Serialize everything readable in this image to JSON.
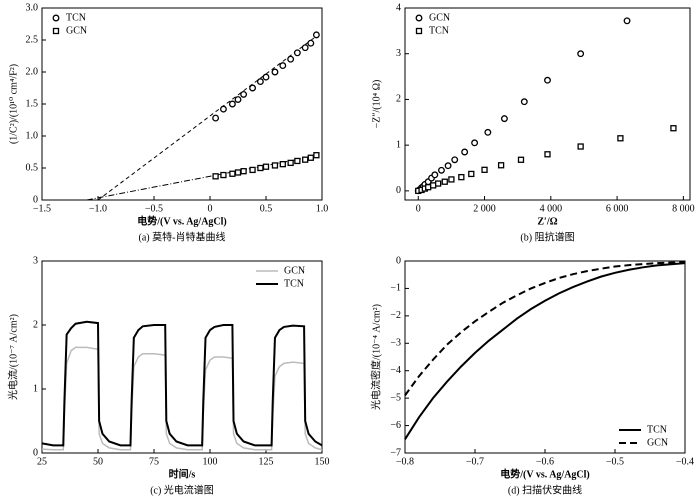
{
  "chart_data": [
    {
      "type": "scatter",
      "caption": "(a) 莫特-肖特基曲线",
      "x_label": "电势/(V vs. Ag/AgCl)",
      "y_label": "(1/C²)/(10¹⁰ cm⁴/F²)",
      "xlim": [
        -1.5,
        1.0
      ],
      "xticks": [
        {
          "value": -1.5,
          "label": "−1.5"
        },
        {
          "value": -1.0,
          "label": "−1.0"
        },
        {
          "value": -0.5,
          "label": "−0.5"
        },
        0,
        0.5,
        {
          "value": 1.0,
          "label": "1.0"
        }
      ],
      "ylim": [
        0,
        3.0
      ],
      "yticks": [
        0,
        0.5,
        {
          "value": 1.0,
          "label": "1.0"
        },
        1.5,
        {
          "value": 2.0,
          "label": "2.0"
        },
        2.5,
        {
          "value": 3.0,
          "label": "3.0"
        }
      ],
      "legend": "upper left",
      "series": [
        {
          "name": "TCN",
          "marker": "circle",
          "color": "#000000",
          "x": [
            0.05,
            0.12,
            0.2,
            0.25,
            0.3,
            0.38,
            0.45,
            0.5,
            0.58,
            0.65,
            0.72,
            0.78,
            0.85,
            0.9,
            0.95
          ],
          "values": [
            1.28,
            1.42,
            1.5,
            1.57,
            1.65,
            1.75,
            1.85,
            1.92,
            2.0,
            2.1,
            2.2,
            2.3,
            2.38,
            2.45,
            2.58
          ]
        },
        {
          "name": "GCN",
          "marker": "square",
          "color": "#000000",
          "x": [
            0.05,
            0.12,
            0.2,
            0.25,
            0.3,
            0.38,
            0.45,
            0.5,
            0.58,
            0.65,
            0.72,
            0.78,
            0.85,
            0.9,
            0.95
          ],
          "values": [
            0.37,
            0.39,
            0.41,
            0.43,
            0.45,
            0.47,
            0.5,
            0.52,
            0.54,
            0.56,
            0.58,
            0.61,
            0.63,
            0.66,
            0.7
          ]
        }
      ],
      "fit_lines": [
        {
          "x": [
            -1.0,
            0.95
          ],
          "values": [
            0,
            2.56
          ],
          "dash": "4,3"
        },
        {
          "x": [
            -1.1,
            0.95
          ],
          "values": [
            0,
            0.69
          ],
          "dash": "6,2,1,2"
        }
      ]
    },
    {
      "type": "scatter",
      "caption": "(b) 阻抗谱图",
      "x_label": "Z′/Ω",
      "y_label": "−Z″/(10⁴ Ω)",
      "xlim": [
        -400,
        8200
      ],
      "xticks": [
        0,
        {
          "value": 2000,
          "label": "2 000"
        },
        {
          "value": 4000,
          "label": "4 000"
        },
        {
          "value": 6000,
          "label": "6 000"
        },
        {
          "value": 8000,
          "label": "8 000"
        }
      ],
      "ylim": [
        -0.2,
        4
      ],
      "yticks": [
        0,
        1,
        2,
        3,
        4
      ],
      "legend": "upper left",
      "series": [
        {
          "name": "GCN",
          "marker": "circle",
          "color": "#000000",
          "x": [
            0,
            50,
            100,
            150,
            200,
            300,
            400,
            500,
            700,
            900,
            1100,
            1400,
            1700,
            2100,
            2600,
            3200,
            3900,
            4900,
            6300
          ],
          "values": [
            0,
            0.03,
            0.07,
            0.1,
            0.14,
            0.2,
            0.28,
            0.35,
            0.45,
            0.55,
            0.68,
            0.85,
            1.05,
            1.28,
            1.58,
            1.95,
            2.42,
            3.0,
            3.72
          ]
        },
        {
          "name": "TCN",
          "marker": "square",
          "color": "#000000",
          "x": [
            0,
            100,
            200,
            300,
            450,
            600,
            800,
            1000,
            1300,
            1600,
            2000,
            2500,
            3100,
            3900,
            4900,
            6100,
            7700
          ],
          "values": [
            0,
            0.02,
            0.05,
            0.08,
            0.12,
            0.16,
            0.2,
            0.25,
            0.3,
            0.37,
            0.46,
            0.56,
            0.68,
            0.8,
            0.97,
            1.15,
            1.37
          ]
        }
      ]
    },
    {
      "type": "line",
      "caption": "(c) 光电流谱图",
      "x_label": "时间/s",
      "y_label": "光电流/(10⁻⁷ A/cm²)",
      "xlim": [
        25,
        150
      ],
      "xticks": [
        25,
        50,
        75,
        100,
        125,
        150
      ],
      "ylim": [
        0,
        3
      ],
      "yticks": [
        0,
        1,
        2,
        3
      ],
      "legend": "upper right",
      "x": [
        25,
        30,
        34.5,
        35,
        36,
        38,
        40,
        45,
        50,
        50.5,
        52,
        55,
        60,
        64.5,
        65,
        66,
        68,
        70,
        75,
        80,
        80.5,
        82,
        85,
        90,
        96.5,
        97,
        98,
        100,
        102,
        106,
        110,
        110.5,
        112,
        115,
        120,
        127.5,
        128,
        129,
        131,
        133,
        137,
        142,
        142.5,
        144,
        147,
        150
      ],
      "series": [
        {
          "name": "GCN",
          "color": "#bbbbbb",
          "width": 1.5,
          "values": [
            0.06,
            0.05,
            0.05,
            0.6,
            1.4,
            1.6,
            1.65,
            1.65,
            1.62,
            0.3,
            0.15,
            0.08,
            0.05,
            0.05,
            0.6,
            1.35,
            1.5,
            1.55,
            1.55,
            1.53,
            0.3,
            0.15,
            0.08,
            0.05,
            0.05,
            0.6,
            1.3,
            1.45,
            1.5,
            1.5,
            1.48,
            0.3,
            0.15,
            0.08,
            0.05,
            0.05,
            0.55,
            1.2,
            1.35,
            1.4,
            1.42,
            1.4,
            0.3,
            0.15,
            0.08,
            0.05
          ]
        },
        {
          "name": "TCN",
          "color": "#000000",
          "width": 2,
          "values": [
            0.15,
            0.12,
            0.12,
            0.8,
            1.85,
            1.95,
            2.02,
            2.05,
            2.03,
            0.5,
            0.3,
            0.18,
            0.12,
            0.12,
            0.8,
            1.8,
            1.92,
            1.98,
            2.0,
            2.0,
            0.5,
            0.3,
            0.18,
            0.12,
            0.12,
            0.8,
            1.8,
            1.92,
            1.97,
            2.0,
            2.0,
            0.5,
            0.3,
            0.18,
            0.12,
            0.12,
            0.8,
            1.8,
            1.92,
            1.97,
            1.99,
            1.98,
            0.5,
            0.3,
            0.18,
            0.12
          ]
        }
      ]
    },
    {
      "type": "line",
      "caption": "(d) 扫描伏安曲线",
      "x_label": "电势/(V vs. Ag/AgCl)",
      "y_label": "光电流密度/(10⁻⁴ A/cm²)",
      "xlim": [
        -0.8,
        -0.4
      ],
      "xticks": [
        {
          "value": -0.8,
          "label": "−0.8"
        },
        {
          "value": -0.7,
          "label": "−0.7"
        },
        {
          "value": -0.6,
          "label": "−0.6"
        },
        {
          "value": -0.5,
          "label": "−0.5"
        },
        {
          "value": -0.4,
          "label": "−0.4"
        }
      ],
      "ylim": [
        -7,
        0
      ],
      "yticks": [
        {
          "value": -7,
          "label": "−7"
        },
        {
          "value": -6,
          "label": "−6"
        },
        {
          "value": -5,
          "label": "−5"
        },
        {
          "value": -4,
          "label": "−4"
        },
        {
          "value": -3,
          "label": "−3"
        },
        {
          "value": -2,
          "label": "−2"
        },
        {
          "value": -1,
          "label": "−1"
        },
        0
      ],
      "legend": "lower right",
      "x": [
        -0.8,
        -0.78,
        -0.76,
        -0.74,
        -0.72,
        -0.7,
        -0.68,
        -0.66,
        -0.64,
        -0.62,
        -0.6,
        -0.58,
        -0.56,
        -0.54,
        -0.52,
        -0.5,
        -0.48,
        -0.46,
        -0.44,
        -0.42,
        -0.4
      ],
      "series": [
        {
          "name": "TCN",
          "color": "#000000",
          "width": 2,
          "values": [
            -6.5,
            -5.7,
            -5.0,
            -4.4,
            -3.85,
            -3.35,
            -2.9,
            -2.5,
            -2.1,
            -1.75,
            -1.45,
            -1.18,
            -0.95,
            -0.75,
            -0.57,
            -0.43,
            -0.32,
            -0.23,
            -0.16,
            -0.12,
            -0.08
          ]
        },
        {
          "name": "GCN",
          "color": "#000000",
          "width": 2,
          "dash": "7,4",
          "values": [
            -4.9,
            -4.2,
            -3.6,
            -3.05,
            -2.6,
            -2.2,
            -1.85,
            -1.52,
            -1.25,
            -1.0,
            -0.8,
            -0.62,
            -0.48,
            -0.37,
            -0.28,
            -0.2,
            -0.15,
            -0.11,
            -0.08,
            -0.06,
            -0.05
          ]
        }
      ]
    }
  ]
}
